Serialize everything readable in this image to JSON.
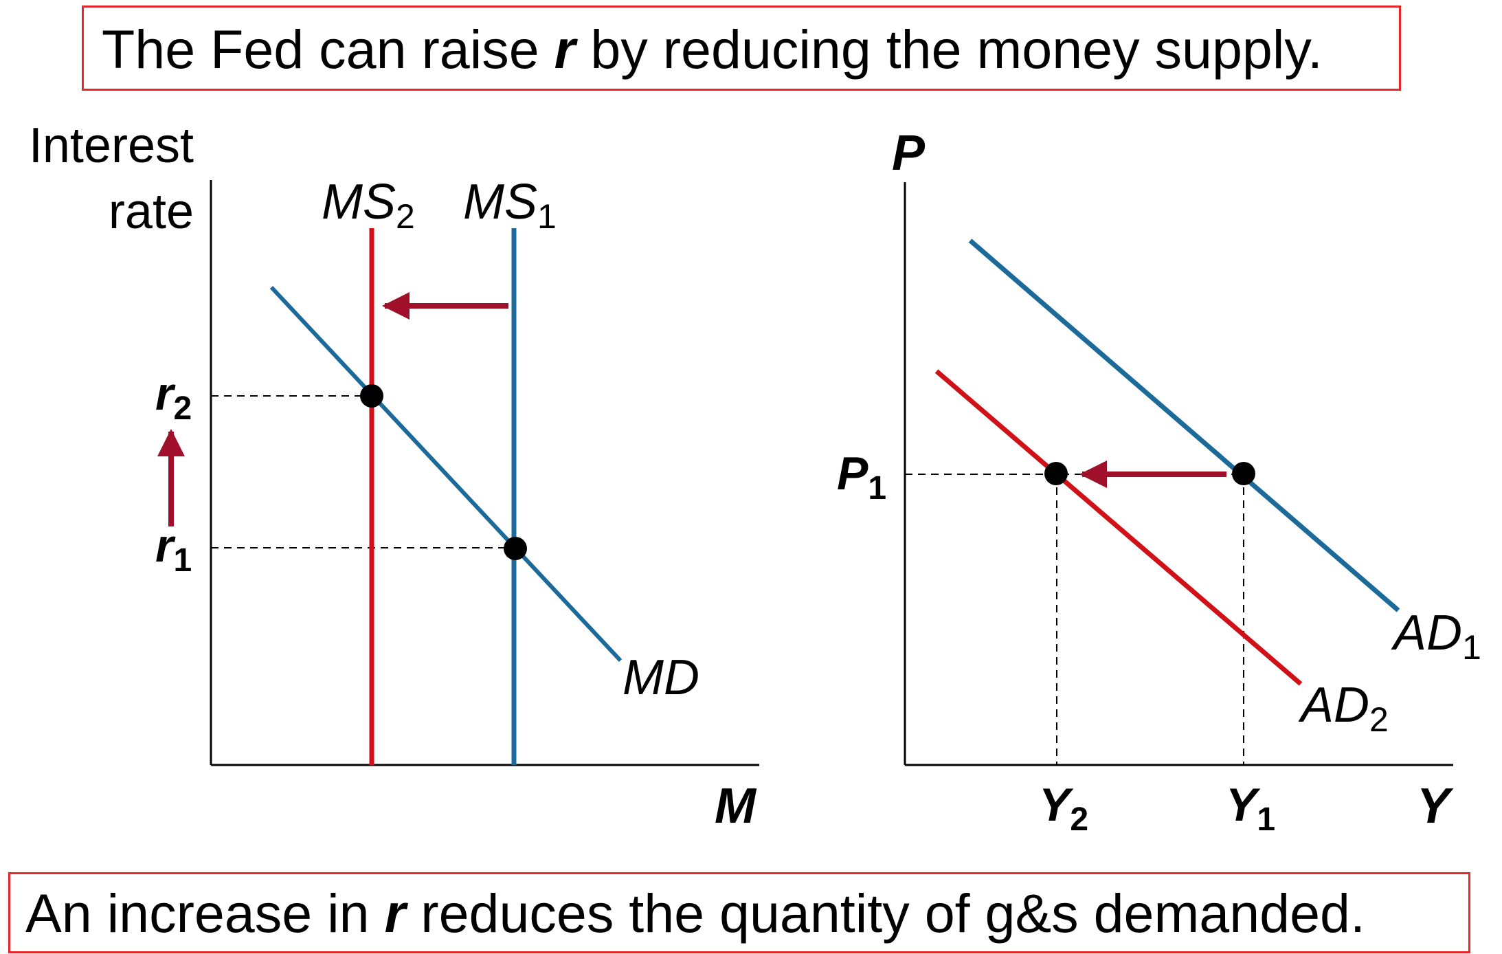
{
  "top_caption": {
    "before": "The Fed can raise ",
    "symbol": "r",
    "after": " by reducing the money supply."
  },
  "bottom_caption": {
    "before": "An increase in ",
    "symbol": "r",
    "after": " reduces the quantity of g&s demanded."
  },
  "money_market": {
    "y_axis_label_line1": "Interest",
    "y_axis_label_line2": "rate",
    "x_axis_label": "M",
    "ms2": {
      "base": "MS",
      "sub": "2"
    },
    "ms1": {
      "base": "MS",
      "sub": "1"
    },
    "md_label": "MD",
    "r2": {
      "base": "r",
      "sub": "2"
    },
    "r1": {
      "base": "r",
      "sub": "1"
    }
  },
  "goods_market": {
    "y_axis_label": "P",
    "x_axis_label": "Y",
    "p1": {
      "base": "P",
      "sub": "1"
    },
    "y2": {
      "base": "Y",
      "sub": "2"
    },
    "y1": {
      "base": "Y",
      "sub": "1"
    },
    "ad1": {
      "base": "AD",
      "sub": "1"
    },
    "ad2": {
      "base": "AD",
      "sub": "2"
    }
  },
  "colors": {
    "blue": "#1b6a9a",
    "red": "#d01218",
    "arrow": "#a0102a",
    "caption_border": "#e8262a"
  }
}
